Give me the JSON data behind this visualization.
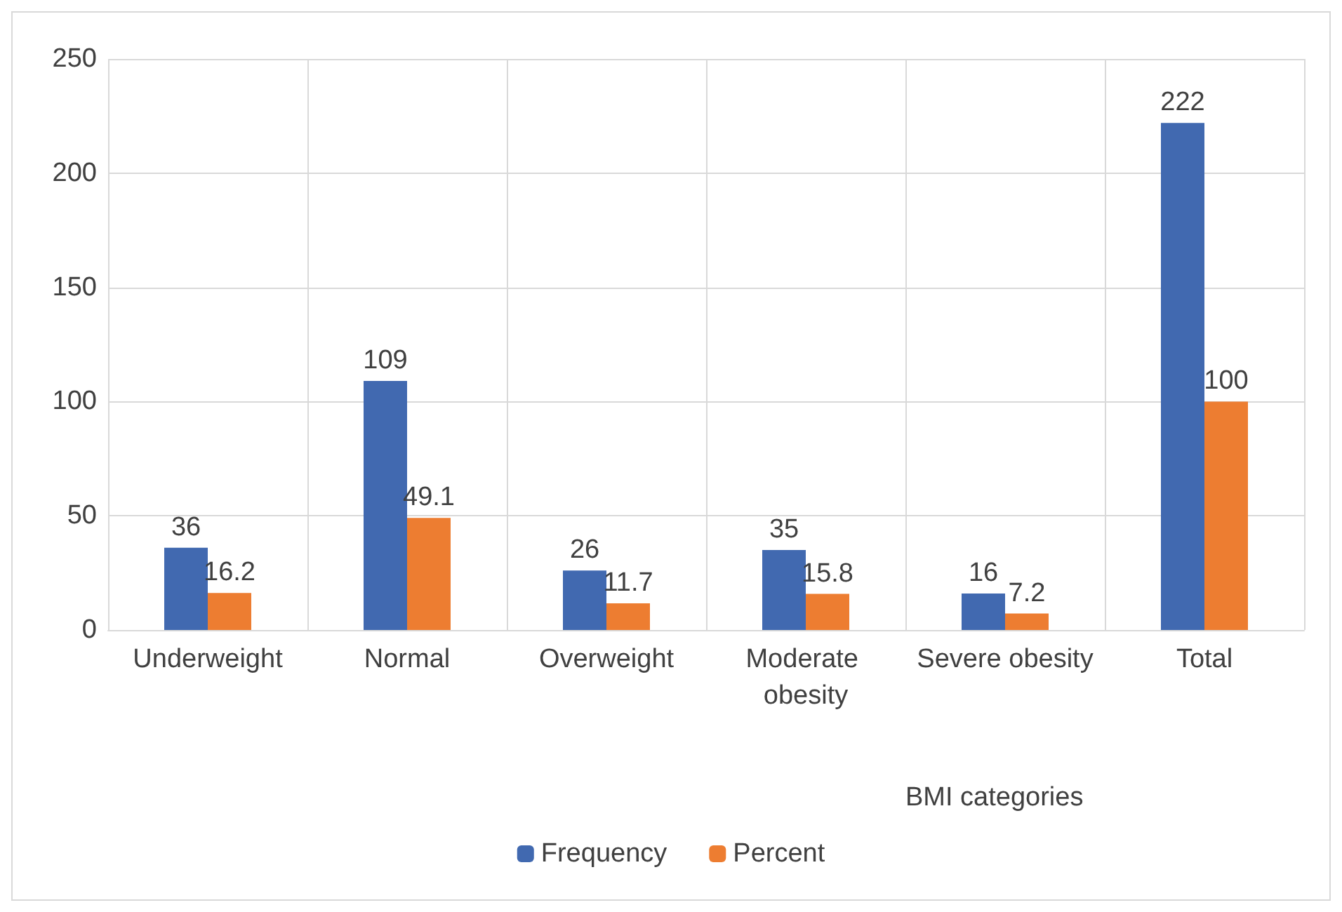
{
  "chart_data": {
    "type": "bar",
    "xlabel": "BMI categories",
    "categories": [
      "Underweight",
      "Normal",
      "Overweight",
      "Moderate obesity",
      "Severe obesity",
      "Total"
    ],
    "series": [
      {
        "name": "Frequency",
        "color": "#4169b0",
        "values": [
          36,
          109,
          26,
          35,
          16,
          222
        ]
      },
      {
        "name": "Percent",
        "color": "#ed7d31",
        "values": [
          16.2,
          49.1,
          11.7,
          15.8,
          7.2,
          100
        ]
      }
    ],
    "ylim": [
      0,
      250
    ],
    "yticks": [
      0,
      50,
      100,
      150,
      200,
      250
    ],
    "grid": true,
    "legend": "bottom",
    "data_labels": true
  }
}
